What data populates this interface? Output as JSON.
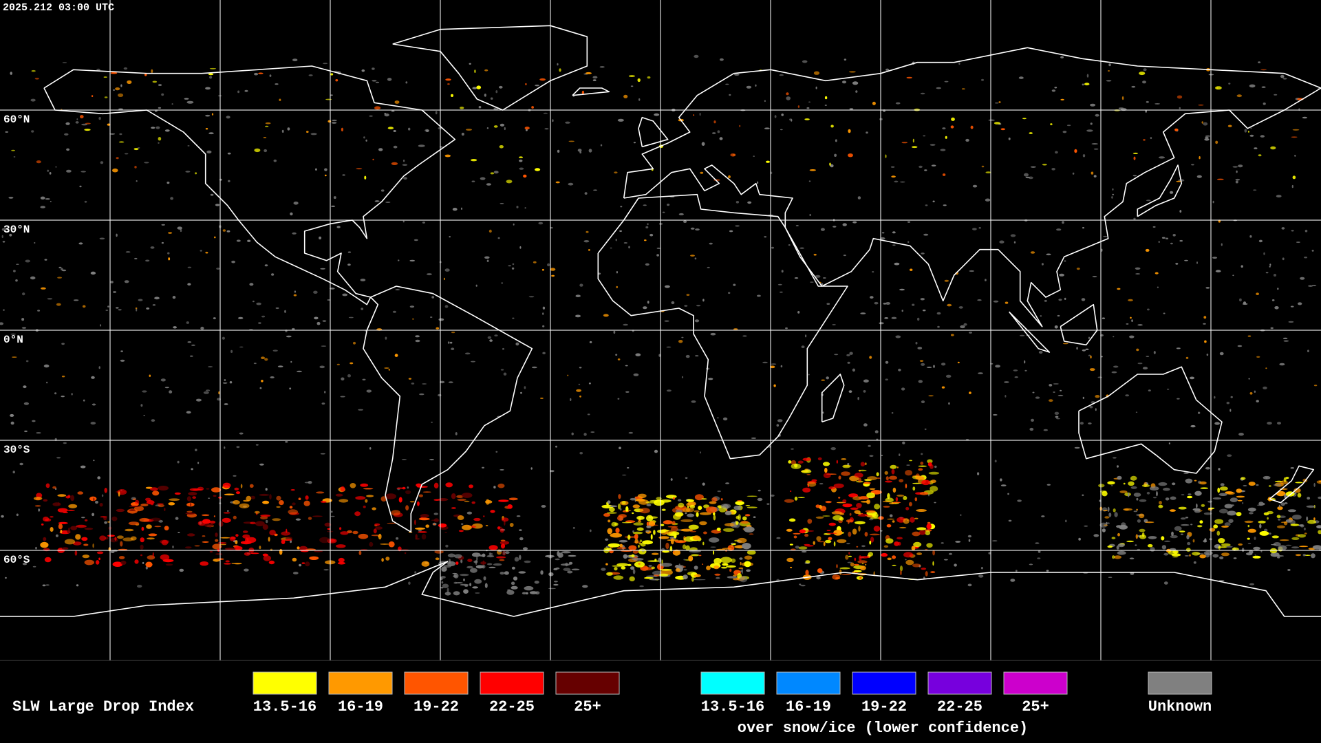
{
  "header": {
    "timestamp": "2025.212 03:00 UTC"
  },
  "map": {
    "latitude_labels": [
      "60°N",
      "30°N",
      "0°N",
      "30°S",
      "60°S"
    ]
  },
  "legend": {
    "title": "SLW Large Drop Index",
    "items": [
      {
        "label": "13.5-16",
        "color": "#ffff00"
      },
      {
        "label": "16-19",
        "color": "#ff9900"
      },
      {
        "label": "19-22",
        "color": "#ff5500"
      },
      {
        "label": "22-25",
        "color": "#ff0000"
      },
      {
        "label": "25+",
        "color": "#660000"
      }
    ],
    "snow_items": [
      {
        "label": "13.5-16",
        "color": "#00ffff"
      },
      {
        "label": "16-19",
        "color": "#0088ff"
      },
      {
        "label": "19-22",
        "color": "#0000ff"
      },
      {
        "label": "22-25",
        "color": "#7700dd"
      },
      {
        "label": "25+",
        "color": "#cc00cc"
      }
    ],
    "snow_caption": "over snow/ice (lower confidence)",
    "unknown": {
      "label": "Unknown",
      "color": "#808080"
    }
  }
}
